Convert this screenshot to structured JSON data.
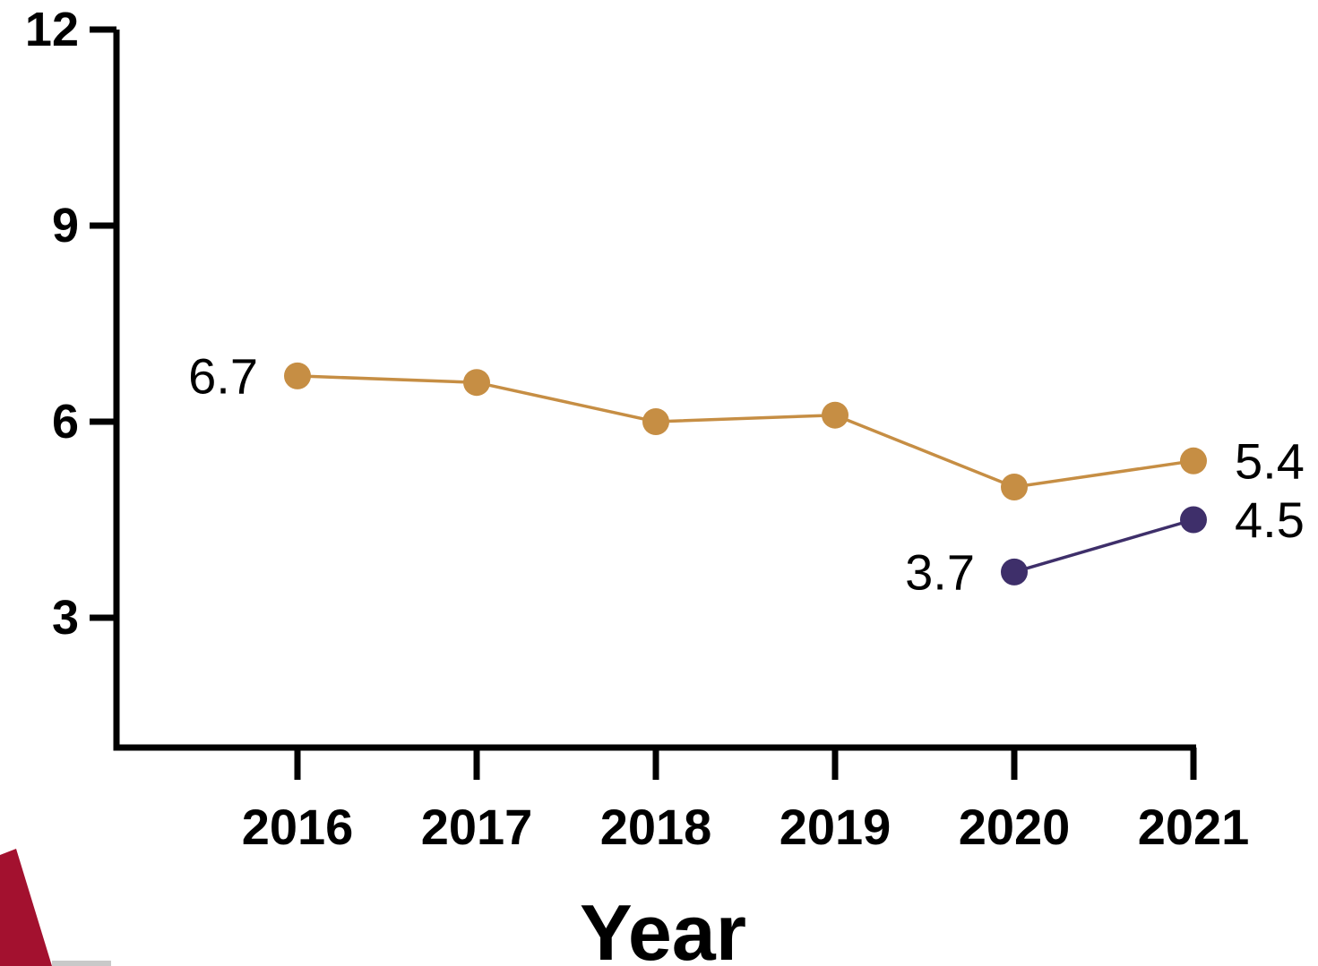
{
  "chart_data": {
    "type": "line",
    "title": "",
    "xlabel": "Year",
    "ylabel": "",
    "x": [
      "2016",
      "2017",
      "2018",
      "2019",
      "2020",
      "2021"
    ],
    "ylim": [
      1,
      12
    ],
    "yticks": [
      3,
      6,
      9,
      12
    ],
    "grid": false,
    "legend": "none",
    "series": [
      {
        "color": "#c68e44",
        "values": [
          6.7,
          6.6,
          6.0,
          6.1,
          5.0,
          5.4
        ],
        "labels": [
          "6.7",
          "",
          "",
          "",
          "",
          "5.4"
        ]
      },
      {
        "color": "#3e2f6a",
        "values": [
          null,
          null,
          null,
          null,
          3.7,
          4.5
        ],
        "labels": [
          "",
          "",
          "",
          "",
          "3.7",
          "4.5"
        ]
      }
    ]
  },
  "decoration": {
    "corner_colors": [
      "#a3112f",
      "#c9c9c9"
    ]
  }
}
